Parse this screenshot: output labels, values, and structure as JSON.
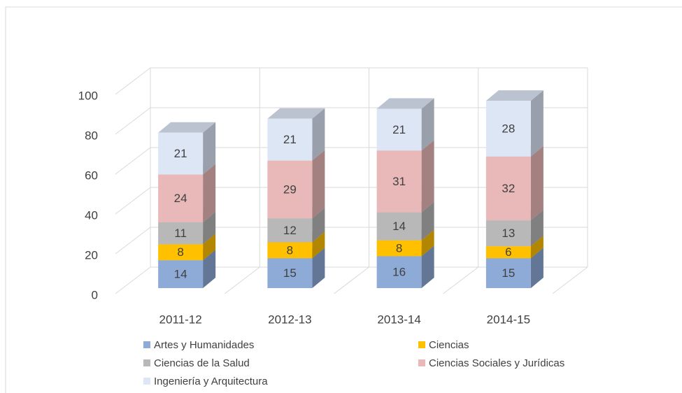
{
  "chart_data": {
    "type": "bar3d_stacked",
    "categories": [
      "2011-12",
      "2012-13",
      "2013-14",
      "2014-15"
    ],
    "series": [
      {
        "name": "Artes y Humanidades",
        "color": "#8eaad6",
        "values": [
          14,
          15,
          16,
          15
        ]
      },
      {
        "name": "Ciencias",
        "color": "#ffc000",
        "values": [
          8,
          8,
          8,
          6
        ]
      },
      {
        "name": "Ciencias de la Salud",
        "color": "#b8b8b8",
        "values": [
          11,
          12,
          14,
          13
        ]
      },
      {
        "name": "Ciencias Sociales y Jurídicas",
        "color": "#e8b9b8",
        "values": [
          24,
          29,
          31,
          32
        ]
      },
      {
        "name": "Ingeniería y Arquitectura",
        "color": "#dce6f5",
        "values": [
          21,
          21,
          21,
          28
        ]
      }
    ],
    "ylim": [
      0,
      100
    ],
    "yticks": [
      0,
      20,
      40,
      60,
      80,
      100
    ],
    "grid": true,
    "legend": "bottom"
  }
}
